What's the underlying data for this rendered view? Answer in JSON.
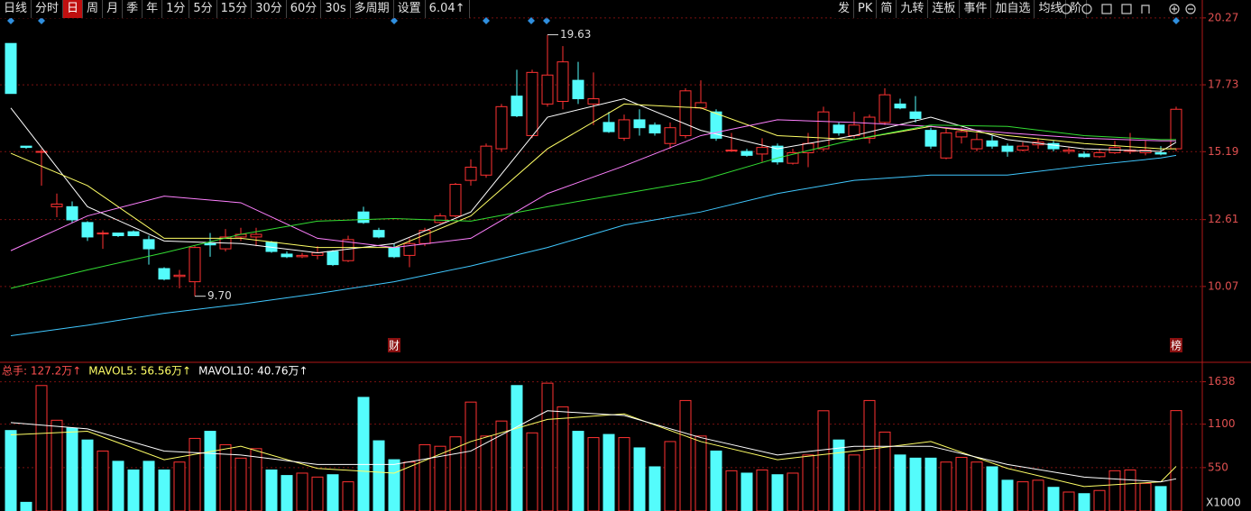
{
  "toolbar": {
    "left": [
      "日线",
      "分时",
      "日",
      "周",
      "月",
      "季",
      "年",
      "1分",
      "5分",
      "15分",
      "30分",
      "60分",
      "30s",
      "多周期",
      "设置",
      "6.04↑"
    ],
    "active_index": 2,
    "right": [
      "发",
      "PK",
      "简",
      "九转",
      "连板",
      "事件",
      "加自选",
      "均线",
      "阶"
    ]
  },
  "chart_data": [
    {
      "type": "candlestick",
      "open": [
        19.3,
        15.4,
        15.2,
        13.1,
        13.1,
        12.5,
        12.1,
        12.1,
        12.15,
        11.85,
        10.75,
        10.45,
        10.25,
        11.7,
        11.5,
        11.95,
        11.95,
        11.75,
        11.3,
        11.2,
        11.25,
        11.4,
        11.05,
        12.9,
        12.2,
        11.55,
        11.25,
        11.7,
        12.5,
        12.75,
        14.1,
        14.3,
        15.3,
        17.3,
        15.8,
        17.0,
        17.1,
        17.9,
        17.0,
        16.3,
        15.7,
        16.4,
        16.2,
        15.5,
        15.8,
        16.85,
        16.7,
        15.25,
        15.2,
        15.1,
        15.4,
        14.75,
        15.15,
        15.3,
        16.2,
        15.8,
        15.7,
        16.3,
        17.0,
        16.7,
        16.0,
        14.95,
        15.75,
        15.3,
        15.6,
        15.4,
        15.25,
        15.45,
        15.5,
        15.2,
        15.1,
        15.0,
        15.15,
        15.2,
        15.15,
        15.15,
        15.3
      ],
      "high": [
        19.3,
        15.4,
        15.3,
        13.6,
        13.3,
        12.55,
        12.2,
        12.1,
        12.2,
        12.0,
        10.8,
        10.7,
        11.6,
        12.1,
        12.25,
        12.3,
        12.3,
        11.8,
        11.4,
        11.35,
        11.6,
        11.45,
        12.0,
        13.1,
        12.3,
        11.7,
        11.9,
        12.3,
        12.85,
        14.0,
        14.9,
        15.5,
        17.0,
        18.3,
        18.3,
        19.63,
        19.2,
        18.6,
        18.2,
        16.7,
        16.6,
        16.8,
        16.3,
        16.3,
        17.6,
        17.9,
        16.8,
        15.9,
        15.3,
        15.7,
        15.5,
        15.3,
        15.9,
        16.9,
        16.3,
        16.7,
        16.6,
        17.6,
        17.2,
        17.3,
        16.1,
        16.1,
        16.1,
        15.9,
        15.8,
        15.5,
        15.55,
        15.7,
        15.6,
        15.35,
        15.2,
        15.3,
        15.6,
        15.9,
        15.6,
        15.4,
        16.9
      ],
      "low": [
        17.4,
        15.3,
        13.9,
        12.7,
        12.5,
        11.8,
        11.5,
        11.95,
        12.0,
        10.9,
        10.3,
        10.0,
        9.7,
        11.2,
        11.4,
        11.8,
        11.6,
        11.35,
        11.15,
        11.15,
        11.1,
        10.85,
        11.0,
        12.45,
        11.9,
        11.15,
        10.8,
        11.6,
        12.45,
        12.7,
        13.9,
        14.2,
        15.2,
        16.5,
        15.7,
        16.9,
        16.8,
        17.0,
        16.2,
        15.9,
        15.6,
        15.8,
        15.8,
        15.3,
        15.7,
        16.8,
        15.6,
        15.2,
        15.0,
        14.8,
        14.7,
        14.7,
        14.6,
        15.2,
        15.8,
        15.7,
        15.5,
        16.2,
        16.8,
        16.3,
        15.3,
        14.9,
        15.5,
        15.2,
        15.3,
        15.0,
        15.2,
        15.3,
        15.2,
        15.1,
        14.95,
        14.95,
        15.1,
        15.1,
        15.05,
        15.05,
        15.2
      ],
      "close": [
        17.4,
        15.35,
        15.2,
        13.2,
        12.6,
        11.95,
        12.1,
        12.0,
        12.0,
        11.5,
        10.35,
        10.5,
        11.55,
        11.65,
        11.95,
        12.05,
        12.05,
        11.4,
        11.2,
        11.25,
        11.35,
        10.9,
        11.85,
        12.5,
        11.95,
        11.2,
        11.7,
        12.2,
        12.75,
        13.95,
        14.6,
        15.4,
        16.9,
        16.55,
        18.2,
        18.1,
        18.6,
        17.2,
        17.2,
        15.95,
        16.4,
        16.1,
        15.9,
        16.1,
        17.5,
        17.05,
        15.7,
        15.25,
        15.05,
        15.35,
        14.8,
        15.15,
        15.5,
        16.7,
        15.9,
        16.2,
        16.5,
        17.35,
        16.85,
        16.45,
        15.4,
        15.9,
        15.95,
        15.65,
        15.4,
        15.2,
        15.4,
        15.55,
        15.3,
        15.25,
        15.0,
        15.15,
        15.35,
        15.25,
        15.25,
        15.1,
        16.8
      ],
      "up_color": "#ff3232",
      "down_color": "#54fcfc",
      "lines": [
        {
          "color": "#ffffff",
          "x": [
            0,
            5,
            10,
            15,
            20,
            25,
            30,
            35,
            40,
            45,
            50,
            55,
            60,
            65,
            70,
            75,
            76
          ],
          "values": [
            16.85,
            13.1,
            11.8,
            11.7,
            11.35,
            11.7,
            12.9,
            16.5,
            17.2,
            16.0,
            15.3,
            15.8,
            16.5,
            15.65,
            15.3,
            15.2,
            15.55
          ]
        },
        {
          "color": "#ffff66",
          "x": [
            0,
            5,
            10,
            15,
            20,
            25,
            30,
            35,
            40,
            45,
            50,
            55,
            60,
            65,
            70,
            75,
            76
          ],
          "values": [
            15.13,
            13.9,
            11.9,
            11.9,
            11.55,
            11.55,
            12.75,
            15.3,
            17.0,
            16.85,
            15.8,
            15.65,
            16.15,
            15.8,
            15.5,
            15.3,
            15.3
          ]
        },
        {
          "color": "#ff80ff",
          "x": [
            0,
            5,
            10,
            15,
            20,
            25,
            30,
            35,
            40,
            45,
            50,
            55,
            60,
            65,
            70,
            75,
            76
          ],
          "values": [
            11.43,
            12.75,
            13.5,
            13.25,
            11.9,
            11.55,
            11.9,
            13.6,
            14.65,
            15.8,
            16.4,
            16.3,
            16.15,
            15.9,
            15.7,
            15.6,
            15.6
          ]
        },
        {
          "color": "#33dd33",
          "x": [
            0,
            5,
            10,
            15,
            20,
            25,
            30,
            35,
            40,
            45,
            50,
            55,
            60,
            65,
            70,
            75,
            76
          ],
          "values": [
            10.0,
            10.7,
            11.35,
            12.05,
            12.55,
            12.65,
            12.55,
            13.1,
            13.6,
            14.1,
            14.95,
            15.65,
            16.2,
            16.15,
            15.8,
            15.65,
            15.65
          ]
        },
        {
          "color": "#40c8ff",
          "x": [
            0,
            5,
            10,
            15,
            20,
            25,
            30,
            35,
            40,
            45,
            50,
            55,
            60,
            65,
            70,
            75,
            76
          ],
          "values": [
            8.2,
            8.6,
            9.05,
            9.4,
            9.8,
            10.25,
            10.85,
            11.55,
            12.4,
            12.9,
            13.6,
            14.1,
            14.3,
            14.3,
            14.65,
            14.95,
            15.05
          ]
        }
      ],
      "max_label": "19.63",
      "min_label": "9.70",
      "events": [
        {
          "index": 25,
          "label": "财"
        },
        {
          "index": 76,
          "label": "榜"
        }
      ],
      "ylim": [
        7.43,
        20.95
      ],
      "yticks": [
        20.27,
        17.73,
        15.19,
        12.61,
        10.07
      ],
      "grid": true
    },
    {
      "type": "bar",
      "values": [
        1020,
        110,
        1590,
        1150,
        1050,
        900,
        760,
        630,
        520,
        630,
        520,
        620,
        920,
        1010,
        840,
        670,
        790,
        520,
        450,
        480,
        430,
        460,
        370,
        1440,
        890,
        650,
        620,
        840,
        820,
        940,
        1380,
        950,
        1140,
        1590,
        990,
        1620,
        1320,
        1010,
        930,
        970,
        930,
        800,
        560,
        880,
        1400,
        950,
        760,
        510,
        480,
        520,
        460,
        480,
        710,
        1270,
        900,
        710,
        1400,
        1000,
        710,
        670,
        670,
        620,
        680,
        620,
        560,
        390,
        370,
        390,
        300,
        240,
        220,
        260,
        510,
        520,
        350,
        310,
        1272
      ],
      "header": [
        {
          "label": "总手: 127.2万↑",
          "color": "#ff5050"
        },
        {
          "label": "MAVOL5: 56.56万↑",
          "color": "#ffff66"
        },
        {
          "label": "MAVOL10: 40.76万↑",
          "color": "#ffffff"
        }
      ],
      "lines": [
        {
          "color": "#ffff66",
          "x": [
            0,
            5,
            10,
            15,
            20,
            25,
            30,
            35,
            40,
            45,
            50,
            55,
            60,
            65,
            70,
            75,
            76
          ],
          "values": [
            965,
            1010,
            650,
            820,
            540,
            480,
            880,
            1160,
            1230,
            880,
            650,
            760,
            880,
            540,
            310,
            370,
            565.6
          ]
        },
        {
          "color": "#ffffff",
          "x": [
            0,
            5,
            10,
            15,
            20,
            25,
            30,
            35,
            40,
            45,
            50,
            55,
            60,
            65,
            70,
            75,
            76
          ],
          "values": [
            1120,
            1040,
            760,
            710,
            590,
            590,
            760,
            1270,
            1210,
            930,
            710,
            820,
            820,
            590,
            430,
            370,
            407.6
          ]
        }
      ],
      "unit_label": "X1000",
      "ylim": [
        0,
        1850
      ],
      "yticks": [
        550,
        1100,
        1638
      ],
      "grid": true
    }
  ]
}
